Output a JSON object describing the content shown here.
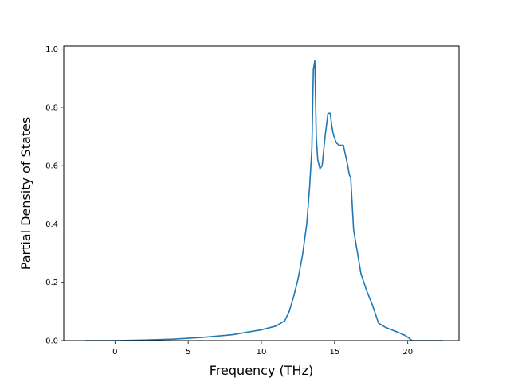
{
  "chart_data": {
    "type": "line",
    "title": "",
    "xlabel": "Frequency (THz)",
    "ylabel": "Partial Density of States",
    "xlim": [
      -3.5,
      23.5
    ],
    "ylim": [
      0,
      1.01
    ],
    "xticks": [
      0,
      5,
      10,
      15,
      20
    ],
    "yticks": [
      0.0,
      0.2,
      0.4,
      0.6,
      0.8,
      1.0
    ],
    "xtick_labels": [
      "0",
      "5",
      "10",
      "15",
      "20"
    ],
    "ytick_labels": [
      "0.0",
      "0.2",
      "0.4",
      "0.6",
      "0.8",
      "1.0"
    ],
    "grid": false,
    "legend": "none",
    "series": [
      {
        "color": "#1f77b4",
        "x": [
          -2.0,
          0.0,
          2.0,
          4.0,
          6.0,
          8.0,
          10.0,
          11.0,
          11.6,
          11.9,
          12.2,
          12.5,
          12.8,
          13.1,
          13.3,
          13.45,
          13.55,
          13.65,
          13.75,
          13.85,
          14.0,
          14.15,
          14.35,
          14.55,
          14.7,
          14.8,
          14.9,
          15.1,
          15.3,
          15.6,
          15.9,
          16.0,
          16.1,
          16.3,
          16.5,
          16.8,
          17.2,
          17.6,
          18.0,
          18.5,
          19.0,
          19.5,
          19.8,
          20.1,
          20.3,
          22.4
        ],
        "y": [
          0.0,
          0.0,
          0.002,
          0.005,
          0.011,
          0.02,
          0.037,
          0.05,
          0.068,
          0.1,
          0.15,
          0.21,
          0.29,
          0.4,
          0.53,
          0.66,
          0.93,
          0.96,
          0.7,
          0.62,
          0.59,
          0.6,
          0.7,
          0.78,
          0.78,
          0.74,
          0.71,
          0.68,
          0.67,
          0.67,
          0.6,
          0.57,
          0.56,
          0.38,
          0.32,
          0.23,
          0.17,
          0.12,
          0.06,
          0.045,
          0.035,
          0.025,
          0.018,
          0.008,
          0.0,
          0.0
        ]
      }
    ]
  }
}
